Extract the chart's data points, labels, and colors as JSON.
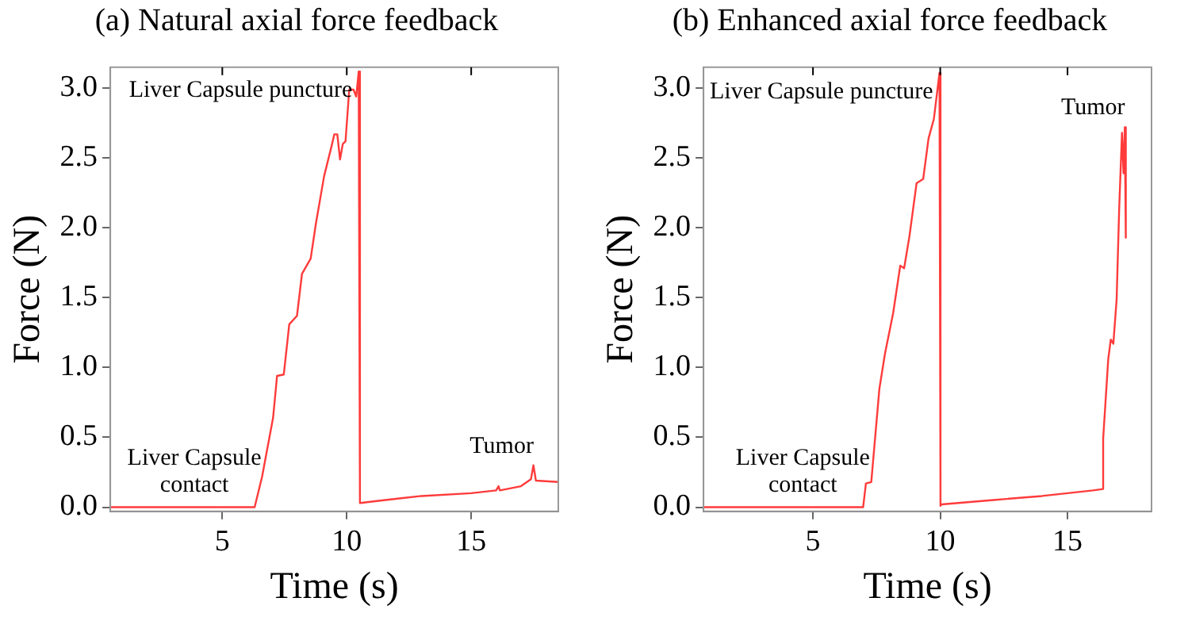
{
  "chart_data": [
    {
      "type": "line",
      "title": "(a) Natural axial force feedback",
      "xlabel": "Time (s)",
      "ylabel": "Force (N)",
      "xlim": [
        0.5,
        18.5
      ],
      "ylim": [
        -0.03,
        3.15
      ],
      "xticks": [
        5,
        10,
        15
      ],
      "yticks": [
        {
          "value": 0,
          "label": "0.0"
        },
        {
          "value": 0.5,
          "label": "0.5"
        },
        {
          "value": 1,
          "label": "1.0"
        },
        {
          "value": 1.5,
          "label": "1.5"
        },
        {
          "value": 2,
          "label": "2.0"
        },
        {
          "value": 2.5,
          "label": "2.5"
        },
        {
          "value": 3,
          "label": "3.0"
        }
      ],
      "grid": false,
      "legend": false,
      "marker": "none",
      "line_style": "solid",
      "annotations": [
        {
          "text": "Liver Capsule puncture",
          "x": 10.48,
          "y": 3.12
        },
        {
          "text": "Liver Capsule\ncontact",
          "x": 6.3,
          "y": 0
        },
        {
          "text": "Tumor",
          "x": 17.5,
          "y": 0.3
        }
      ],
      "series": [
        {
          "color": "#ff3b3b",
          "x": [
            0.5,
            6.3,
            6.6,
            7.04,
            7.2,
            7.47,
            7.69,
            8.0,
            8.2,
            8.55,
            8.76,
            9.09,
            9.41,
            9.5,
            9.62,
            9.73,
            9.84,
            9.95,
            10.1,
            10.27,
            10.38,
            10.48,
            10.53,
            10.55,
            11,
            13,
            15,
            16,
            16.1,
            16.15,
            17,
            17.4,
            17.5,
            17.6,
            18.5
          ],
          "values": [
            0,
            0,
            0.22,
            0.64,
            0.94,
            0.95,
            1.31,
            1.37,
            1.67,
            1.78,
            2.03,
            2.37,
            2.6,
            2.67,
            2.67,
            2.49,
            2.6,
            2.62,
            2.99,
            2.99,
            2.94,
            3.12,
            0.03,
            0.03,
            0.04,
            0.08,
            0.1,
            0.12,
            0.15,
            0.12,
            0.15,
            0.2,
            0.3,
            0.19,
            0.18
          ]
        }
      ]
    },
    {
      "type": "line",
      "title": "(b) Enhanced axial force feedback",
      "xlabel": "Time (s)",
      "ylabel": "Force (N)",
      "xlim": [
        0.7,
        18.3
      ],
      "ylim": [
        -0.03,
        3.15
      ],
      "xticks": [
        5,
        10,
        15
      ],
      "yticks": [
        {
          "value": 0,
          "label": "0.0"
        },
        {
          "value": 0.5,
          "label": "0.5"
        },
        {
          "value": 1,
          "label": "1.0"
        },
        {
          "value": 1.5,
          "label": "1.5"
        },
        {
          "value": 2,
          "label": "2.0"
        },
        {
          "value": 2.5,
          "label": "2.5"
        },
        {
          "value": 3,
          "label": "3.0"
        }
      ],
      "grid": false,
      "legend": false,
      "marker": "none",
      "line_style": "solid",
      "annotations": [
        {
          "text": "Liver Capsule puncture",
          "x": 9.97,
          "y": 3.11
        },
        {
          "text": "Liver Capsule\ncontact",
          "x": 6.97,
          "y": 0
        },
        {
          "text": "Tumor",
          "x": 17.25,
          "y": 2.72
        }
      ],
      "series": [
        {
          "color": "#ff3b3b",
          "x": [
            0.7,
            6.97,
            7.08,
            7.29,
            7.61,
            7.83,
            8.15,
            8.43,
            8.58,
            8.79,
            9.07,
            9.33,
            9.54,
            9.75,
            9.97,
            10.01,
            10.05,
            12,
            14,
            16,
            16.4,
            16.4,
            16.6,
            16.7,
            16.8,
            16.93,
            17.03,
            17.14,
            17.2,
            17.25,
            17.29
          ],
          "values": [
            0,
            0,
            0.17,
            0.18,
            0.85,
            1.1,
            1.39,
            1.73,
            1.71,
            1.94,
            2.32,
            2.35,
            2.64,
            2.78,
            3.11,
            0.01,
            0.02,
            0.05,
            0.08,
            0.12,
            0.13,
            0.49,
            1.06,
            1.2,
            1.17,
            1.49,
            2.14,
            2.68,
            2.39,
            2.72,
            1.93
          ]
        }
      ]
    }
  ]
}
